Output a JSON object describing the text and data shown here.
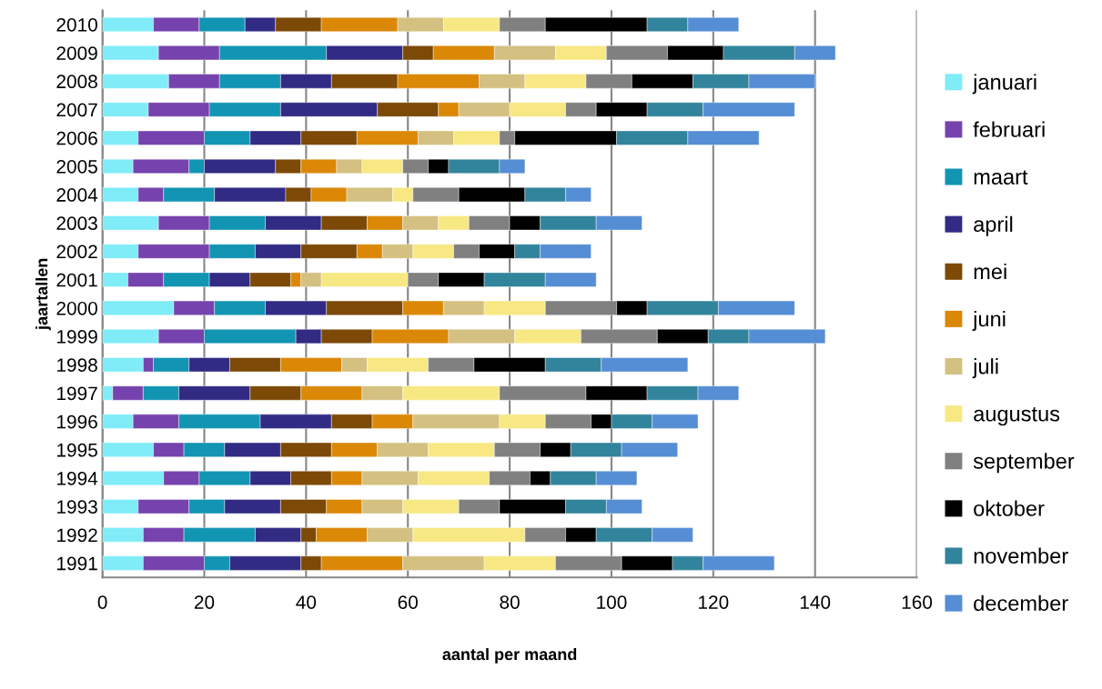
{
  "chart_data": {
    "type": "bar",
    "orientation": "horizontal",
    "stacked": true,
    "categories": [
      "2010",
      "2009",
      "2008",
      "2007",
      "2006",
      "2005",
      "2004",
      "2003",
      "2002",
      "2001",
      "2000",
      "1999",
      "1998",
      "1997",
      "1996",
      "1995",
      "1994",
      "1993",
      "1992",
      "1991"
    ],
    "series": [
      {
        "name": "januari",
        "color": "#7fecf7",
        "values": [
          10,
          11,
          13,
          9,
          7,
          6,
          7,
          11,
          7,
          5,
          14,
          11,
          8,
          2,
          6,
          10,
          12,
          7,
          8,
          8
        ]
      },
      {
        "name": "februari",
        "color": "#7643ae",
        "values": [
          9,
          12,
          10,
          12,
          13,
          11,
          5,
          10,
          14,
          7,
          8,
          9,
          2,
          6,
          9,
          6,
          7,
          10,
          8,
          12
        ]
      },
      {
        "name": "maart",
        "color": "#1294b3",
        "values": [
          9,
          21,
          12,
          14,
          9,
          3,
          10,
          11,
          9,
          9,
          10,
          18,
          7,
          7,
          16,
          8,
          10,
          7,
          14,
          5
        ]
      },
      {
        "name": "april",
        "color": "#312b84",
        "values": [
          6,
          15,
          10,
          19,
          10,
          14,
          14,
          11,
          9,
          8,
          12,
          5,
          8,
          14,
          14,
          11,
          8,
          11,
          9,
          14
        ]
      },
      {
        "name": "mei",
        "color": "#7c4906",
        "values": [
          9,
          6,
          13,
          12,
          11,
          5,
          5,
          9,
          11,
          8,
          15,
          10,
          10,
          10,
          8,
          10,
          8,
          9,
          3,
          4
        ]
      },
      {
        "name": "juni",
        "color": "#db8806",
        "values": [
          15,
          12,
          16,
          4,
          12,
          7,
          7,
          7,
          5,
          2,
          8,
          15,
          12,
          12,
          8,
          9,
          6,
          7,
          10,
          16
        ]
      },
      {
        "name": "juli",
        "color": "#d4c080",
        "values": [
          9,
          12,
          9,
          10,
          7,
          5,
          9,
          7,
          6,
          4,
          8,
          13,
          5,
          8,
          17,
          10,
          11,
          8,
          9,
          16
        ]
      },
      {
        "name": "augustus",
        "color": "#f8e883",
        "values": [
          11,
          10,
          12,
          11,
          9,
          8,
          4,
          6,
          8,
          17,
          12,
          13,
          12,
          19,
          9,
          13,
          14,
          11,
          22,
          14
        ]
      },
      {
        "name": "september",
        "color": "#808080",
        "values": [
          9,
          12,
          9,
          6,
          3,
          5,
          9,
          8,
          5,
          6,
          14,
          15,
          9,
          17,
          9,
          9,
          8,
          8,
          8,
          13
        ]
      },
      {
        "name": "oktober",
        "color": "#000000",
        "values": [
          20,
          11,
          12,
          10,
          20,
          4,
          13,
          6,
          7,
          9,
          6,
          10,
          14,
          12,
          4,
          6,
          4,
          13,
          6,
          10
        ]
      },
      {
        "name": "november",
        "color": "#31849b",
        "values": [
          8,
          14,
          11,
          11,
          14,
          10,
          8,
          11,
          5,
          12,
          14,
          8,
          11,
          10,
          8,
          10,
          9,
          8,
          11,
          6
        ]
      },
      {
        "name": "december",
        "color": "#558ed5",
        "values": [
          10,
          8,
          13,
          18,
          14,
          5,
          5,
          9,
          10,
          10,
          15,
          15,
          17,
          8,
          9,
          11,
          8,
          7,
          8,
          14
        ]
      }
    ],
    "xlabel": "aantal per maand",
    "ylabel": "jaartallen",
    "xlim": [
      0,
      160
    ],
    "xticks": [
      0,
      20,
      40,
      60,
      80,
      100,
      120,
      140,
      160
    ],
    "grid": "x",
    "legend": "right"
  }
}
